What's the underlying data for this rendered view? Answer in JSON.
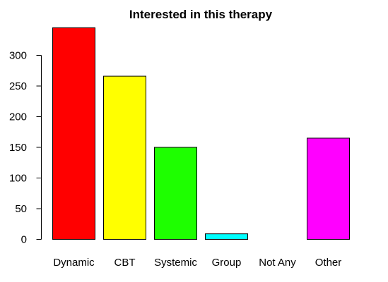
{
  "chart_data": {
    "type": "bar",
    "title": "Interested in this therapy",
    "xlabel": "",
    "ylabel": "",
    "categories": [
      "Dynamic",
      "CBT",
      "Systemic",
      "Group",
      "Not Any",
      "Other"
    ],
    "values": [
      345,
      266,
      150,
      9,
      0,
      165
    ],
    "colors": [
      "#ff0000",
      "#ffff00",
      "#1eff00",
      "#00ffff",
      "#0000ff",
      "#ff00ff"
    ],
    "yticks": [
      0,
      50,
      100,
      150,
      200,
      250,
      300
    ],
    "ylim": [
      0,
      345
    ],
    "grid": false,
    "legend": "none"
  }
}
